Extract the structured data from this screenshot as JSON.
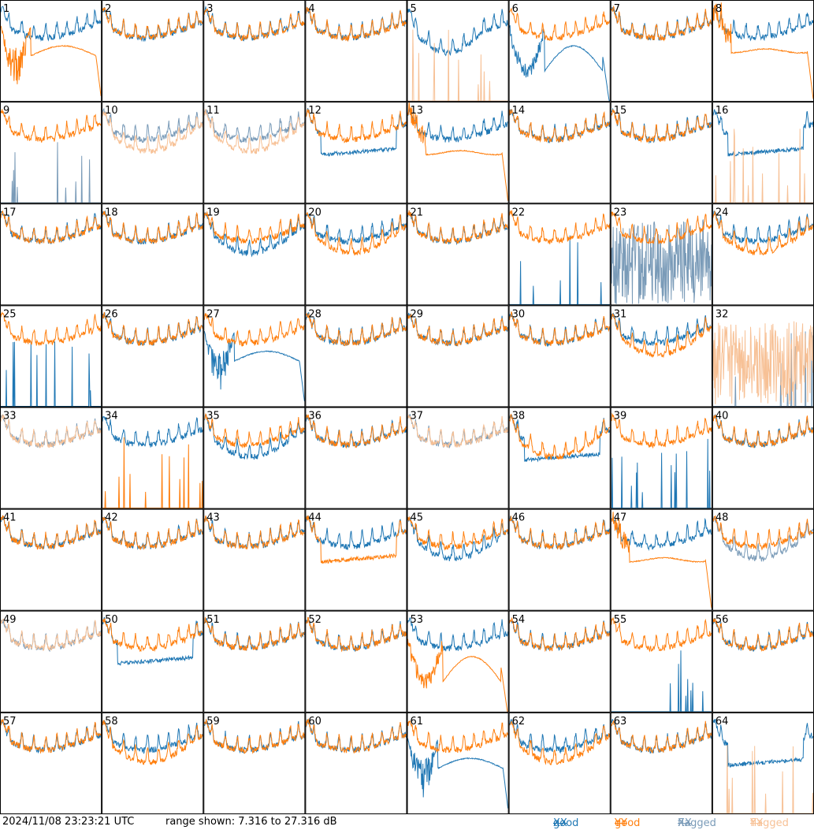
{
  "footer": {
    "timestamp": "2024/11/08 23:23:21 UTC",
    "range_text": "range shown: 7.316 to 27.316 dB"
  },
  "legend": [
    {
      "word": "good",
      "pol": "XX",
      "color": "#1f77b4"
    },
    {
      "word": "good",
      "pol": "YY",
      "color": "#ff7f0e"
    },
    {
      "word": "flagged",
      "pol": "XX",
      "color": "#7a9bb8"
    },
    {
      "word": "flagged",
      "pol": "YY",
      "color": "#f7c196"
    }
  ],
  "chart_data": {
    "type": "line",
    "layout": "8x8 small multiples, one panel per input number",
    "ylim_db": [
      7.316,
      27.316
    ],
    "series_names": [
      "good XX",
      "good YY",
      "flagged XX",
      "flagged YY"
    ],
    "colors": {
      "good_xx": "#1f77b4",
      "good_yy": "#ff7f0e",
      "flagged_xx": "#7a9bb8",
      "flagged_yy": "#f7c196"
    },
    "panels": [
      {
        "label": "1",
        "xx": "normal",
        "yy": "dipA",
        "xx_flagged": false,
        "yy_flagged": false
      },
      {
        "label": "2",
        "xx": "normal",
        "yy": "normal",
        "xx_flagged": false,
        "yy_flagged": false
      },
      {
        "label": "3",
        "xx": "normal",
        "yy": "normal",
        "xx_flagged": false,
        "yy_flagged": false
      },
      {
        "label": "4",
        "xx": "normal",
        "yy": "normal",
        "xx_flagged": false,
        "yy_flagged": false
      },
      {
        "label": "5",
        "xx": "highdip",
        "yy": "spikes",
        "xx_flagged": false,
        "yy_flagged": true
      },
      {
        "label": "6",
        "xx": "dipdrop",
        "yy": "normal",
        "xx_flagged": false,
        "yy_flagged": false
      },
      {
        "label": "7",
        "xx": "normal",
        "yy": "normal",
        "xx_flagged": false,
        "yy_flagged": false
      },
      {
        "label": "8",
        "xx": "normal",
        "yy": "flatdrop",
        "xx_flagged": false,
        "yy_flagged": false
      },
      {
        "label": "9",
        "xx": "spikes",
        "yy": "normal",
        "xx_flagged": true,
        "yy_flagged": false
      },
      {
        "label": "10",
        "xx": "normal",
        "yy": "deep",
        "xx_flagged": true,
        "yy_flagged": true
      },
      {
        "label": "11",
        "xx": "normal",
        "yy": "deep",
        "xx_flagged": true,
        "yy_flagged": true
      },
      {
        "label": "12",
        "xx": "flat",
        "yy": "normal",
        "xx_flagged": false,
        "yy_flagged": false
      },
      {
        "label": "13",
        "xx": "normal",
        "yy": "flatdrop",
        "xx_flagged": false,
        "yy_flagged": false
      },
      {
        "label": "14",
        "xx": "normal",
        "yy": "normal",
        "xx_flagged": false,
        "yy_flagged": false
      },
      {
        "label": "15",
        "xx": "normal",
        "yy": "normal",
        "xx_flagged": false,
        "yy_flagged": false
      },
      {
        "label": "16",
        "xx": "flat",
        "yy": "spikes",
        "xx_flagged": false,
        "yy_flagged": true
      },
      {
        "label": "17",
        "xx": "normal",
        "yy": "normal",
        "xx_flagged": false,
        "yy_flagged": false
      },
      {
        "label": "18",
        "xx": "normal",
        "yy": "normal",
        "xx_flagged": false,
        "yy_flagged": false
      },
      {
        "label": "19",
        "xx": "deep",
        "yy": "normal",
        "xx_flagged": false,
        "yy_flagged": false
      },
      {
        "label": "20",
        "xx": "normal",
        "yy": "deep",
        "xx_flagged": false,
        "yy_flagged": false
      },
      {
        "label": "21",
        "xx": "normal",
        "yy": "normal",
        "xx_flagged": false,
        "yy_flagged": false
      },
      {
        "label": "22",
        "xx": "spikes",
        "yy": "normal",
        "xx_flagged": false,
        "yy_flagged": false
      },
      {
        "label": "23",
        "xx": "noisy",
        "yy": "normal",
        "xx_flagged": true,
        "yy_flagged": false
      },
      {
        "label": "24",
        "xx": "normal",
        "yy": "deep",
        "xx_flagged": false,
        "yy_flagged": false
      },
      {
        "label": "25",
        "xx": "spikes",
        "yy": "normal",
        "xx_flagged": false,
        "yy_flagged": false
      },
      {
        "label": "26",
        "xx": "normal",
        "yy": "normal",
        "xx_flagged": false,
        "yy_flagged": false
      },
      {
        "label": "27",
        "xx": "dipA",
        "yy": "normal",
        "xx_flagged": false,
        "yy_flagged": false
      },
      {
        "label": "28",
        "xx": "normal",
        "yy": "normal",
        "xx_flagged": false,
        "yy_flagged": false
      },
      {
        "label": "29",
        "xx": "normal",
        "yy": "normal",
        "xx_flagged": false,
        "yy_flagged": false
      },
      {
        "label": "30",
        "xx": "normal",
        "yy": "normal",
        "xx_flagged": false,
        "yy_flagged": false
      },
      {
        "label": "31",
        "xx": "normal",
        "yy": "deep",
        "xx_flagged": false,
        "yy_flagged": false
      },
      {
        "label": "32",
        "xx": "spikes",
        "yy": "noisy",
        "xx_flagged": true,
        "yy_flagged": true
      },
      {
        "label": "33",
        "xx": "normal",
        "yy": "normal",
        "xx_flagged": true,
        "yy_flagged": true
      },
      {
        "label": "34",
        "xx": "normal",
        "yy": "spikes",
        "xx_flagged": false,
        "yy_flagged": false
      },
      {
        "label": "35",
        "xx": "deep",
        "yy": "normal",
        "xx_flagged": false,
        "yy_flagged": false
      },
      {
        "label": "36",
        "xx": "normal",
        "yy": "normal",
        "xx_flagged": false,
        "yy_flagged": false
      },
      {
        "label": "37",
        "xx": "normal",
        "yy": "normal",
        "xx_flagged": true,
        "yy_flagged": true
      },
      {
        "label": "38",
        "xx": "flat",
        "yy": "deep",
        "xx_flagged": false,
        "yy_flagged": false
      },
      {
        "label": "39",
        "xx": "spikes",
        "yy": "normal",
        "xx_flagged": false,
        "yy_flagged": false
      },
      {
        "label": "40",
        "xx": "normal",
        "yy": "normal",
        "xx_flagged": false,
        "yy_flagged": false
      },
      {
        "label": "41",
        "xx": "normal",
        "yy": "normal",
        "xx_flagged": false,
        "yy_flagged": false
      },
      {
        "label": "42",
        "xx": "normal",
        "yy": "normal",
        "xx_flagged": false,
        "yy_flagged": false
      },
      {
        "label": "43",
        "xx": "normal",
        "yy": "normal",
        "xx_flagged": false,
        "yy_flagged": false
      },
      {
        "label": "44",
        "xx": "normal",
        "yy": "flat",
        "xx_flagged": false,
        "yy_flagged": false
      },
      {
        "label": "45",
        "xx": "deep",
        "yy": "normal",
        "xx_flagged": false,
        "yy_flagged": false
      },
      {
        "label": "46",
        "xx": "normal",
        "yy": "normal",
        "xx_flagged": false,
        "yy_flagged": false
      },
      {
        "label": "47",
        "xx": "normal",
        "yy": "flatdrop",
        "xx_flagged": false,
        "yy_flagged": false
      },
      {
        "label": "48",
        "xx": "deep",
        "yy": "normal",
        "xx_flagged": true,
        "yy_flagged": false
      },
      {
        "label": "49",
        "xx": "normal",
        "yy": "normal",
        "xx_flagged": true,
        "yy_flagged": true
      },
      {
        "label": "50",
        "xx": "flat",
        "yy": "normal",
        "xx_flagged": false,
        "yy_flagged": false
      },
      {
        "label": "51",
        "xx": "normal",
        "yy": "normal",
        "xx_flagged": false,
        "yy_flagged": false
      },
      {
        "label": "52",
        "xx": "normal",
        "yy": "normal",
        "xx_flagged": false,
        "yy_flagged": false
      },
      {
        "label": "53",
        "xx": "normal",
        "yy": "dipdrop",
        "xx_flagged": false,
        "yy_flagged": false
      },
      {
        "label": "54",
        "xx": "normal",
        "yy": "normal",
        "xx_flagged": false,
        "yy_flagged": false
      },
      {
        "label": "55",
        "xx": "spikes",
        "yy": "normal",
        "xx_flagged": false,
        "yy_flagged": false
      },
      {
        "label": "56",
        "xx": "normal",
        "yy": "normal",
        "xx_flagged": false,
        "yy_flagged": false
      },
      {
        "label": "57",
        "xx": "normal",
        "yy": "normal",
        "xx_flagged": false,
        "yy_flagged": false
      },
      {
        "label": "58",
        "xx": "normal",
        "yy": "deep",
        "xx_flagged": false,
        "yy_flagged": false
      },
      {
        "label": "59",
        "xx": "normal",
        "yy": "normal",
        "xx_flagged": false,
        "yy_flagged": false
      },
      {
        "label": "60",
        "xx": "normal",
        "yy": "normal",
        "xx_flagged": false,
        "yy_flagged": false
      },
      {
        "label": "61",
        "xx": "dipA",
        "yy": "normal",
        "xx_flagged": false,
        "yy_flagged": false
      },
      {
        "label": "62",
        "xx": "normal",
        "yy": "deep",
        "xx_flagged": false,
        "yy_flagged": false
      },
      {
        "label": "63",
        "xx": "normal",
        "yy": "normal",
        "xx_flagged": false,
        "yy_flagged": false
      },
      {
        "label": "64",
        "xx": "flat",
        "yy": "spikes",
        "xx_flagged": false,
        "yy_flagged": true
      }
    ]
  }
}
